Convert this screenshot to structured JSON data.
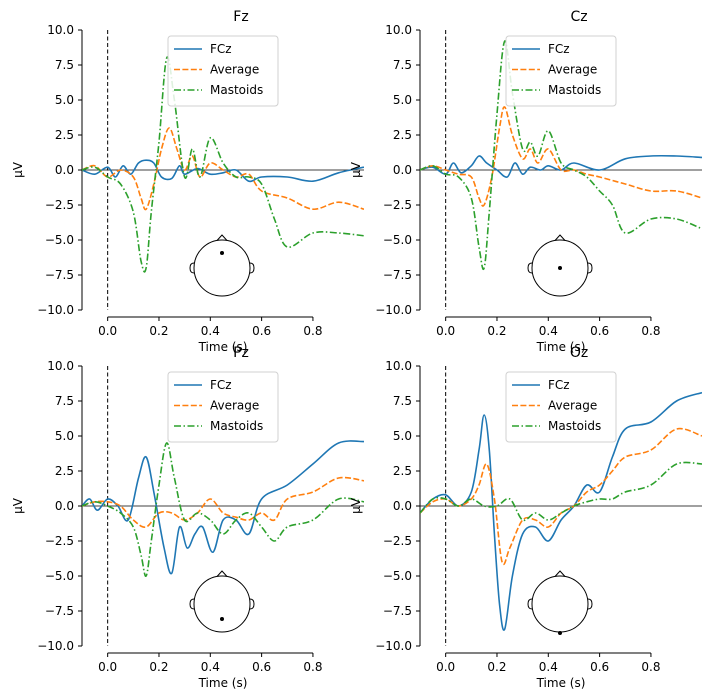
{
  "chart_data": {
    "type": "line",
    "shared": {
      "xlabel": "Time (s)",
      "ylabel": "µV",
      "xlim": [
        -0.1,
        0.999
      ],
      "ylim": [
        -10,
        10
      ],
      "xticks": [
        0.0,
        0.2,
        0.4,
        0.6,
        0.8
      ],
      "xtick_labels": [
        "0.0",
        "0.2",
        "0.4",
        "0.6",
        "0.8"
      ],
      "yticks": [
        10,
        7.5,
        5,
        2.5,
        0,
        -2.5,
        -5,
        -7.5,
        -10
      ],
      "ytick_labels": [
        "10.0",
        "7.5",
        "5.0",
        "2.5",
        "0.0",
        "−2.5",
        "−5.0",
        "−7.5",
        "−10.0"
      ],
      "legend_position": "top-center",
      "colors": {
        "FCz": "#1f77b4",
        "Average": "#ff7f0e",
        "Mastoids": "#2ca02c"
      }
    },
    "panels": [
      {
        "title": "Fz",
        "sensor_position": "front",
        "series": [
          {
            "name": "FCz",
            "style": "solid",
            "x": [
              -0.1,
              -0.05,
              0,
              0.03,
              0.06,
              0.09,
              0.12,
              0.15,
              0.18,
              0.21,
              0.25,
              0.28,
              0.3,
              0.35,
              0.4,
              0.45,
              0.5,
              0.55,
              0.6,
              0.7,
              0.8,
              0.9,
              0.999
            ],
            "y": [
              0.0,
              -0.3,
              0.2,
              -0.5,
              0.3,
              -0.3,
              0.5,
              0.7,
              0.5,
              -0.5,
              -0.6,
              0.3,
              -0.3,
              0.1,
              -0.3,
              -0.2,
              0.0,
              -0.8,
              -0.5,
              -0.5,
              -0.8,
              -0.2,
              0.2
            ]
          },
          {
            "name": "Average",
            "style": "dashed",
            "x": [
              -0.1,
              -0.05,
              0,
              0.05,
              0.1,
              0.13,
              0.15,
              0.18,
              0.21,
              0.24,
              0.27,
              0.3,
              0.33,
              0.36,
              0.4,
              0.45,
              0.5,
              0.55,
              0.6,
              0.7,
              0.8,
              0.9,
              0.999
            ],
            "y": [
              0.0,
              0.3,
              -0.5,
              0.0,
              -0.5,
              -2.0,
              -2.8,
              -1.0,
              1.5,
              3.0,
              1.5,
              0.0,
              1.0,
              -0.5,
              0.5,
              0.0,
              -0.5,
              -0.3,
              -1.5,
              -2.0,
              -2.8,
              -2.3,
              -2.8
            ]
          },
          {
            "name": "Mastoids",
            "style": "dashdot",
            "x": [
              -0.1,
              -0.05,
              0,
              0.05,
              0.1,
              0.13,
              0.15,
              0.17,
              0.2,
              0.23,
              0.26,
              0.3,
              0.33,
              0.36,
              0.4,
              0.45,
              0.5,
              0.55,
              0.6,
              0.65,
              0.7,
              0.8,
              0.9,
              0.999
            ],
            "y": [
              0.0,
              0.2,
              -0.5,
              -1.0,
              -3.0,
              -6.5,
              -7.0,
              -3.0,
              2.0,
              8.0,
              5.0,
              -0.5,
              1.5,
              -0.5,
              2.3,
              0.5,
              -0.5,
              -0.5,
              -1.0,
              -3.5,
              -5.5,
              -4.5,
              -4.5,
              -4.7
            ]
          }
        ]
      },
      {
        "title": "Cz",
        "sensor_position": "center",
        "series": [
          {
            "name": "FCz",
            "style": "solid",
            "x": [
              -0.1,
              -0.05,
              0,
              0.03,
              0.06,
              0.1,
              0.13,
              0.16,
              0.2,
              0.24,
              0.27,
              0.3,
              0.33,
              0.37,
              0.4,
              0.45,
              0.5,
              0.6,
              0.7,
              0.8,
              0.9,
              0.999
            ],
            "y": [
              0.0,
              0.2,
              -0.3,
              0.5,
              -0.2,
              0.3,
              1.0,
              0.5,
              0.0,
              -0.5,
              0.5,
              -0.3,
              0.2,
              0.0,
              0.3,
              0.0,
              0.5,
              0.0,
              0.8,
              1.0,
              1.0,
              0.9
            ]
          },
          {
            "name": "Average",
            "style": "dashed",
            "x": [
              -0.1,
              -0.05,
              0,
              0.05,
              0.1,
              0.13,
              0.15,
              0.18,
              0.21,
              0.23,
              0.26,
              0.3,
              0.33,
              0.36,
              0.4,
              0.45,
              0.5,
              0.55,
              0.6,
              0.7,
              0.8,
              0.9,
              0.999
            ],
            "y": [
              0.0,
              0.3,
              0.0,
              -0.3,
              -0.5,
              -2.0,
              -2.5,
              -0.5,
              3.0,
              4.5,
              2.5,
              0.8,
              1.5,
              0.5,
              1.5,
              0.0,
              0.0,
              -0.3,
              -0.5,
              -1.0,
              -1.5,
              -1.5,
              -2.0
            ]
          },
          {
            "name": "Mastoids",
            "style": "dashdot",
            "x": [
              -0.1,
              -0.05,
              0,
              0.05,
              0.1,
              0.13,
              0.15,
              0.17,
              0.2,
              0.23,
              0.26,
              0.3,
              0.33,
              0.36,
              0.4,
              0.45,
              0.5,
              0.55,
              0.6,
              0.65,
              0.7,
              0.8,
              0.9,
              0.999
            ],
            "y": [
              0.0,
              0.3,
              -0.3,
              -0.5,
              -2.0,
              -5.5,
              -7.0,
              -3.0,
              4.0,
              9.2,
              5.5,
              1.5,
              2.0,
              1.0,
              2.8,
              0.5,
              0.0,
              -0.5,
              -1.5,
              -2.5,
              -4.5,
              -3.5,
              -3.5,
              -4.2
            ]
          }
        ]
      },
      {
        "title": "Pz",
        "sensor_position": "posterior",
        "series": [
          {
            "name": "FCz",
            "style": "solid",
            "x": [
              -0.1,
              -0.07,
              -0.04,
              0,
              0.04,
              0.08,
              0.12,
              0.15,
              0.18,
              0.22,
              0.25,
              0.28,
              0.31,
              0.34,
              0.37,
              0.41,
              0.45,
              0.5,
              0.55,
              0.6,
              0.7,
              0.8,
              0.9,
              0.999
            ],
            "y": [
              0.0,
              0.5,
              -0.3,
              0.5,
              0.0,
              -1.0,
              2.0,
              3.5,
              1.0,
              -3.0,
              -4.8,
              -1.5,
              -3.0,
              -2.0,
              -1.5,
              -3.3,
              -1.0,
              -1.0,
              -2.0,
              0.5,
              1.5,
              3.0,
              4.5,
              4.6
            ]
          },
          {
            "name": "Average",
            "style": "dashed",
            "x": [
              -0.1,
              -0.05,
              0,
              0.05,
              0.1,
              0.15,
              0.2,
              0.25,
              0.3,
              0.35,
              0.4,
              0.45,
              0.5,
              0.55,
              0.6,
              0.65,
              0.7,
              0.8,
              0.9,
              0.999
            ],
            "y": [
              0.0,
              0.3,
              0.3,
              0.0,
              -1.0,
              -1.5,
              -0.5,
              -0.5,
              -1.0,
              -0.5,
              0.5,
              -0.5,
              -0.8,
              -1.0,
              -0.5,
              -1.0,
              0.5,
              1.0,
              2.0,
              1.8
            ]
          },
          {
            "name": "Mastoids",
            "style": "dashdot",
            "x": [
              -0.1,
              -0.05,
              0,
              0.05,
              0.1,
              0.13,
              0.15,
              0.17,
              0.2,
              0.23,
              0.26,
              0.3,
              0.35,
              0.4,
              0.45,
              0.5,
              0.55,
              0.6,
              0.65,
              0.7,
              0.8,
              0.9,
              0.999
            ],
            "y": [
              0.0,
              0.3,
              0.0,
              -0.5,
              -1.5,
              -3.5,
              -5.0,
              -2.5,
              1.5,
              4.5,
              2.0,
              -1.0,
              -0.5,
              -1.0,
              -2.0,
              -1.0,
              -0.5,
              -1.5,
              -2.5,
              -1.5,
              -1.0,
              0.5,
              0.3
            ]
          }
        ]
      },
      {
        "title": "Oz",
        "sensor_position": "occipital",
        "series": [
          {
            "name": "FCz",
            "style": "solid",
            "x": [
              -0.1,
              -0.05,
              0,
              0.05,
              0.1,
              0.13,
              0.15,
              0.17,
              0.19,
              0.21,
              0.23,
              0.26,
              0.3,
              0.35,
              0.4,
              0.45,
              0.5,
              0.55,
              0.6,
              0.65,
              0.7,
              0.8,
              0.9,
              0.999
            ],
            "y": [
              -0.5,
              0.5,
              0.8,
              0.0,
              1.0,
              4.0,
              6.5,
              4.0,
              -2.0,
              -7.0,
              -8.8,
              -5.0,
              -2.0,
              -1.5,
              -2.5,
              -1.0,
              0.0,
              1.5,
              1.0,
              3.5,
              5.5,
              6.0,
              7.5,
              8.1
            ]
          },
          {
            "name": "Average",
            "style": "dashed",
            "x": [
              -0.1,
              -0.05,
              0,
              0.05,
              0.1,
              0.13,
              0.16,
              0.19,
              0.22,
              0.25,
              0.3,
              0.35,
              0.4,
              0.45,
              0.5,
              0.55,
              0.6,
              0.65,
              0.7,
              0.8,
              0.9,
              0.999
            ],
            "y": [
              -0.5,
              0.3,
              0.5,
              0.0,
              0.5,
              1.5,
              3.0,
              0.5,
              -4.0,
              -3.0,
              -1.0,
              -1.0,
              -1.5,
              -0.5,
              0.0,
              1.0,
              1.5,
              2.5,
              3.5,
              4.0,
              5.5,
              5.0
            ]
          },
          {
            "name": "Mastoids",
            "style": "dashdot",
            "x": [
              -0.1,
              -0.05,
              0,
              0.05,
              0.1,
              0.15,
              0.2,
              0.25,
              0.3,
              0.35,
              0.4,
              0.45,
              0.5,
              0.55,
              0.6,
              0.65,
              0.7,
              0.8,
              0.9,
              0.999
            ],
            "y": [
              -0.5,
              0.5,
              0.5,
              0.0,
              0.5,
              0.0,
              0.0,
              0.5,
              -1.0,
              -0.5,
              -1.0,
              -0.5,
              0.0,
              0.3,
              0.5,
              0.5,
              1.0,
              1.5,
              3.0,
              3.0
            ]
          }
        ]
      }
    ]
  }
}
